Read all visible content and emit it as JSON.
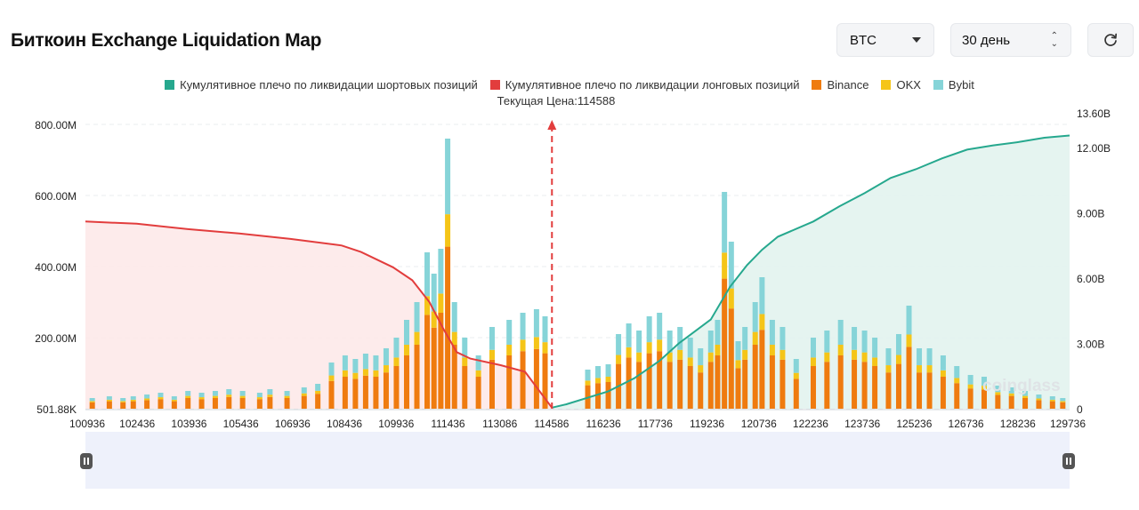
{
  "header": {
    "title": "Биткоин Exchange Liquidation Map",
    "symbol": "BTC",
    "period": "30 день",
    "refresh_icon": "refresh-icon"
  },
  "legend": [
    {
      "label": "Кумулятивное плечо по ликвидации шортовых позиций",
      "color": "#26a88e"
    },
    {
      "label": "Кумулятивное плечо по ликвидации лонговых позиций",
      "color": "#e23d3d"
    },
    {
      "label": "Binance",
      "color": "#ef7b0f"
    },
    {
      "label": "OKX",
      "color": "#f5c518"
    },
    {
      "label": "Bybit",
      "color": "#86d4d8"
    }
  ],
  "current_price_label": "Текущая Цена:114588",
  "watermark": "coinglass",
  "chart_data": {
    "type": "bar",
    "current_price": 114588,
    "x_ticks": [
      "100936",
      "102436",
      "103936",
      "105436",
      "106936",
      "108436",
      "109936",
      "111436",
      "113086",
      "114586",
      "116236",
      "117736",
      "119236",
      "120736",
      "122236",
      "123736",
      "125236",
      "126736",
      "128236",
      "129736"
    ],
    "x_range": [
      100936,
      129736
    ],
    "y_left_ticks": [
      "501.88K",
      "200.00M",
      "400.00M",
      "600.00M",
      "800.00M"
    ],
    "y_left_range": [
      0,
      800
    ],
    "y_left_unit": "M",
    "y_right_ticks": [
      "0",
      "3.00B",
      "6.00B",
      "9.00B",
      "12.00B",
      "13.60B"
    ],
    "y_right_range": [
      0,
      13.6
    ],
    "y_right_unit": "B",
    "bars_total_M": {
      "x": [
        101136,
        101636,
        102036,
        102336,
        102736,
        103136,
        103536,
        103936,
        104336,
        104736,
        105136,
        105536,
        106036,
        106336,
        106836,
        107336,
        107736,
        108136,
        108536,
        108836,
        109136,
        109436,
        109736,
        110036,
        110336,
        110636,
        110936,
        111136,
        111336,
        111536,
        111736,
        112036,
        112436,
        112836,
        113336,
        113736,
        114136,
        114386,
        115636,
        115936,
        116236,
        116536,
        116836,
        117136,
        117436,
        117736,
        118036,
        118336,
        118636,
        118936,
        119236,
        119436,
        119636,
        119836,
        120036,
        120236,
        120536,
        120736,
        121036,
        121336,
        121736,
        122236,
        122636,
        123036,
        123436,
        123736,
        124036,
        124436,
        124736,
        125036,
        125336,
        125636,
        126036,
        126436,
        126836,
        127236,
        127636,
        128036,
        128436,
        128836,
        129236,
        129536
      ],
      "values": [
        30,
        35,
        30,
        35,
        40,
        45,
        35,
        50,
        45,
        50,
        55,
        50,
        45,
        55,
        50,
        60,
        70,
        130,
        150,
        140,
        155,
        150,
        170,
        200,
        250,
        300,
        440,
        380,
        450,
        760,
        300,
        200,
        150,
        230,
        250,
        270,
        280,
        260,
        110,
        120,
        125,
        210,
        240,
        220,
        260,
        270,
        220,
        230,
        200,
        170,
        220,
        250,
        610,
        470,
        190,
        230,
        300,
        370,
        250,
        230,
        140,
        200,
        220,
        250,
        230,
        220,
        200,
        170,
        210,
        290,
        170,
        170,
        150,
        120,
        95,
        90,
        65,
        60,
        50,
        40,
        35,
        30
      ],
      "binance_share": 0.6,
      "okx_share": 0.12
    },
    "long_cumulative_B": {
      "x": [
        100936,
        102436,
        103936,
        105436,
        106936,
        108436,
        109000,
        109936,
        110500,
        111000,
        111436,
        111800,
        112200,
        113086,
        113800,
        114586
      ],
      "values": [
        8.6,
        8.5,
        8.25,
        8.05,
        7.8,
        7.5,
        7.2,
        6.5,
        5.9,
        4.9,
        3.6,
        2.6,
        2.3,
        2.0,
        1.7,
        0.05
      ]
    },
    "short_cumulative_B": {
      "x": [
        114586,
        115000,
        116236,
        117000,
        117736,
        118300,
        119236,
        119800,
        120300,
        120736,
        121200,
        122236,
        123000,
        123736,
        124500,
        125236,
        126000,
        126736,
        127500,
        128236,
        129000,
        129736
      ],
      "values": [
        0.05,
        0.2,
        0.8,
        1.4,
        2.2,
        3.0,
        4.1,
        5.6,
        6.6,
        7.3,
        7.9,
        8.6,
        9.3,
        9.9,
        10.6,
        11.0,
        11.5,
        11.9,
        12.1,
        12.25,
        12.45,
        12.55
      ]
    }
  }
}
